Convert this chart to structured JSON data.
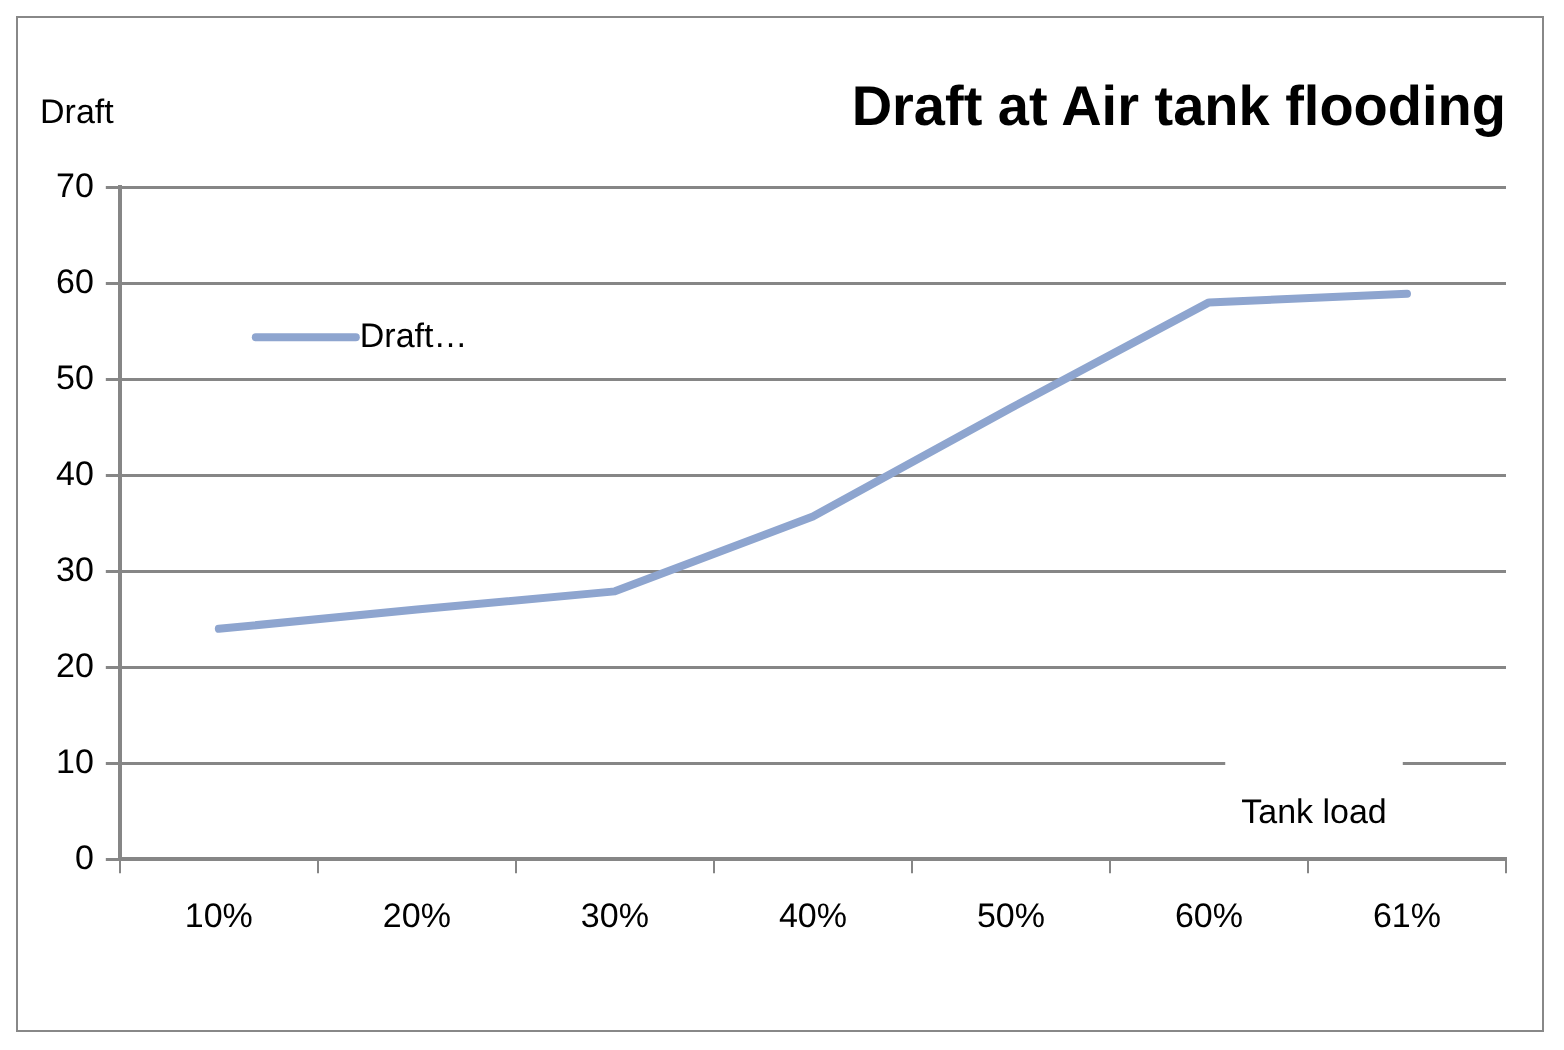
{
  "chart_data": {
    "type": "line",
    "title": "Draft at Air tank flooding",
    "ylabel": "Draft",
    "xlabel": "Tank load",
    "categories": [
      "10%",
      "20%",
      "30%",
      "40%",
      "50%",
      "60%",
      "61%"
    ],
    "series": [
      {
        "name": "Draft…",
        "color": "#8ea5cf",
        "values": [
          24,
          26,
          27.9,
          35.7,
          47,
          58,
          58.9
        ]
      }
    ],
    "ylim": [
      0,
      70
    ],
    "yticks": [
      0,
      10,
      20,
      30,
      40,
      50,
      60,
      70
    ],
    "grid": "y",
    "legend": "top left",
    "marker": "none"
  }
}
